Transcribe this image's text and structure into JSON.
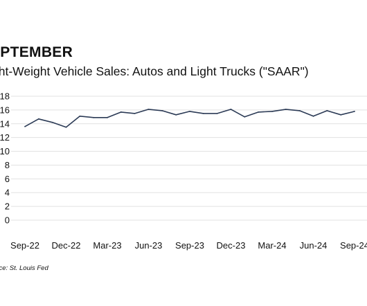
{
  "header": {
    "title": "EPTEMBER",
    "subtitle": "ght-Weight Vehicle Sales: Autos and Light Trucks (\"SAAR\")"
  },
  "source": "urce: St. Louis Fed",
  "colors": {
    "line": "#2b3a55",
    "grid": "#e1e1e1",
    "text": "#111111"
  },
  "chart_data": {
    "type": "line",
    "title": "",
    "xlabel": "",
    "ylabel": "",
    "ylim": [
      0,
      18
    ],
    "yticks": [
      0,
      2,
      4,
      6,
      8,
      10,
      12,
      14,
      16,
      18
    ],
    "grid": true,
    "x": [
      "Sep-22",
      "Oct-22",
      "Nov-22",
      "Dec-22",
      "Jan-23",
      "Feb-23",
      "Mar-23",
      "Apr-23",
      "May-23",
      "Jun-23",
      "Jul-23",
      "Aug-23",
      "Sep-23",
      "Oct-23",
      "Nov-23",
      "Dec-23",
      "Jan-24",
      "Feb-24",
      "Mar-24",
      "Apr-24",
      "May-24",
      "Jun-24",
      "Jul-24",
      "Aug-24",
      "Sep-24"
    ],
    "xtick_labels": [
      "Sep-22",
      "Dec-22",
      "Mar-23",
      "Jun-23",
      "Sep-23",
      "Dec-23",
      "Mar-24",
      "Jun-24",
      "Sep-24"
    ],
    "series": [
      {
        "values": [
          13.6,
          14.7,
          14.2,
          13.5,
          15.1,
          14.9,
          14.9,
          15.7,
          15.5,
          16.1,
          15.9,
          15.3,
          15.8,
          15.5,
          15.5,
          16.1,
          15.0,
          15.7,
          15.8,
          16.1,
          15.9,
          15.1,
          15.9,
          15.3,
          15.8
        ]
      }
    ]
  }
}
